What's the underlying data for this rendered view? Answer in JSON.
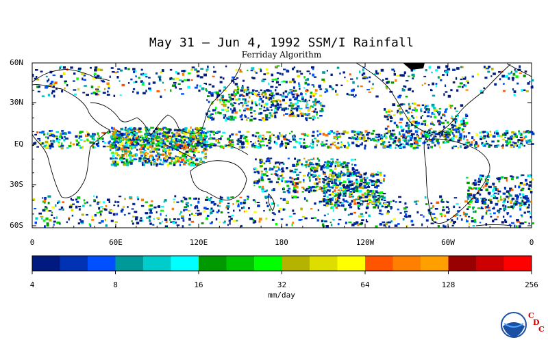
{
  "title": "May 31 – Jun 4, 1992 SSM/I Rainfall",
  "subtitle": "Ferriday Algorithm",
  "lat_labels": [
    "60N",
    "30N",
    "EQ",
    "30S",
    "60S"
  ],
  "lon_labels": [
    "0",
    "60E",
    "120E",
    "180",
    "120W",
    "60W",
    "0"
  ],
  "colorbar": {
    "units": "mm/day",
    "labels": [
      "4",
      "8",
      "16",
      "32",
      "64",
      "128",
      "256"
    ],
    "colors": [
      "#001a80",
      "#0033b3",
      "#0050ff",
      "#009999",
      "#00cccc",
      "#00ffff",
      "#009900",
      "#00c400",
      "#00ff00",
      "#b3b300",
      "#dddd00",
      "#ffff00",
      "#ff5500",
      "#ff7f00",
      "#ffa000",
      "#990000",
      "#cc0000",
      "#ff0000"
    ]
  },
  "logo": {
    "badge": "NOAA",
    "org": [
      "C",
      "D",
      "C"
    ]
  }
}
